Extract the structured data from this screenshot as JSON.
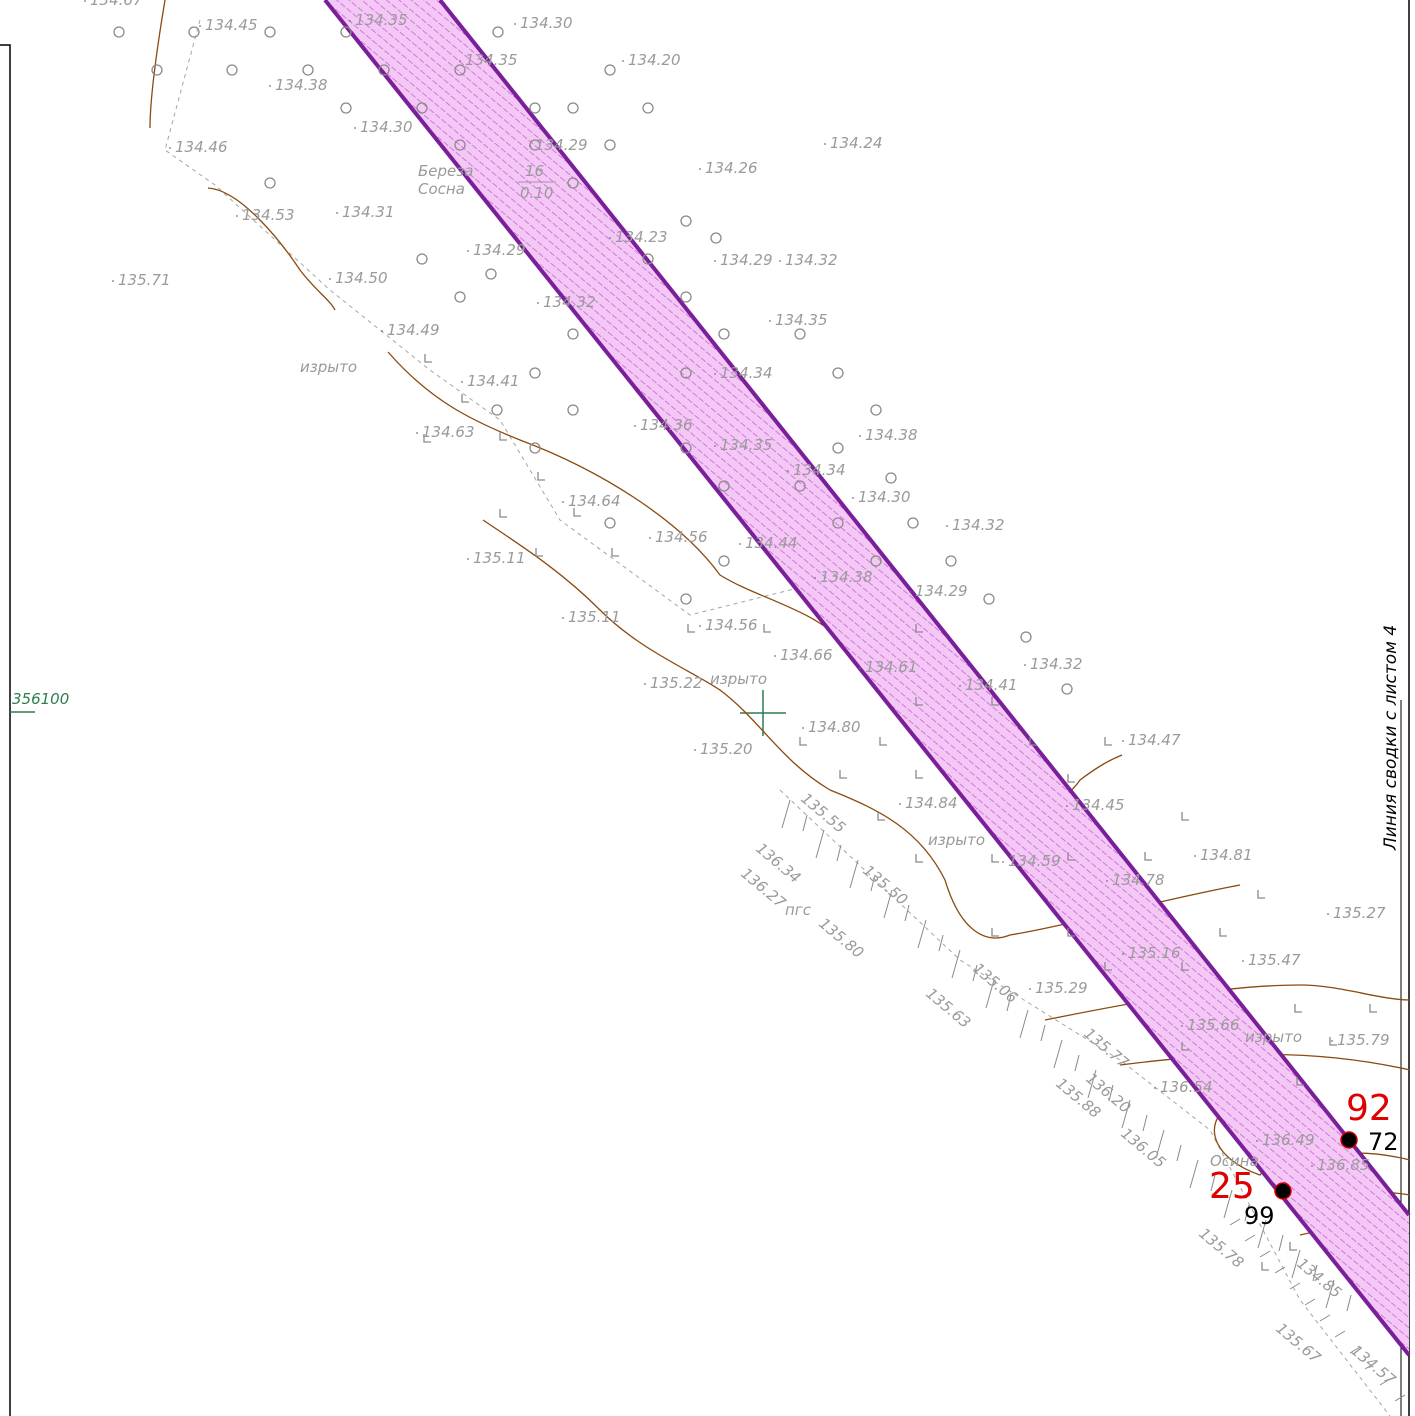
{
  "elevations": [
    "134.67",
    "134.45",
    "134.35",
    "134.30",
    "134.35",
    "134.20",
    "134.38",
    "134.30",
    "134.29",
    "134.24",
    "134.46",
    "134.26",
    "134.53",
    "134.31",
    "134.29",
    "134.23",
    "134.29",
    "134.32",
    "135.71",
    "134.50",
    "134.32",
    "134.35",
    "134.49",
    "134.41",
    "134.34",
    "134.63",
    "134.36",
    "134.35",
    "134.38",
    "134.34",
    "134.30",
    "134.64",
    "134.56",
    "134.44",
    "134.32",
    "135.11",
    "134.38",
    "134.29",
    "135.11",
    "134.56",
    "134.66",
    "134.32",
    "135.22",
    "134.61",
    "134.41",
    "134.80",
    "135.20",
    "134.47",
    "134.84",
    "134.45",
    "134.81",
    "135.27",
    "135.47",
    "135.29",
    "135.79",
    "136.54",
    "136.49",
    "136.85",
    "134.59",
    "134.78",
    "135.16",
    "135.66"
  ],
  "rotated": [
    "135.55",
    "136.34",
    "136.27",
    "135.50",
    "135.80",
    "135.06",
    "135.63",
    "135.77",
    "135.88",
    "136.20",
    "136.05",
    "135.78",
    "134.85",
    "135.67",
    "134.57"
  ],
  "notes": [
    "изрыто",
    "изрыто",
    "изрыто",
    "изрыто",
    "пгс",
    "Осина"
  ],
  "trees": [
    "Береза",
    "Сосна",
    "16",
    "0.10"
  ],
  "grid_label": "356100",
  "sheet_link": "Линия сводки с листом 4",
  "points": [
    {
      "number": "92",
      "id": "72"
    },
    {
      "number": "25",
      "id": "99"
    }
  ]
}
